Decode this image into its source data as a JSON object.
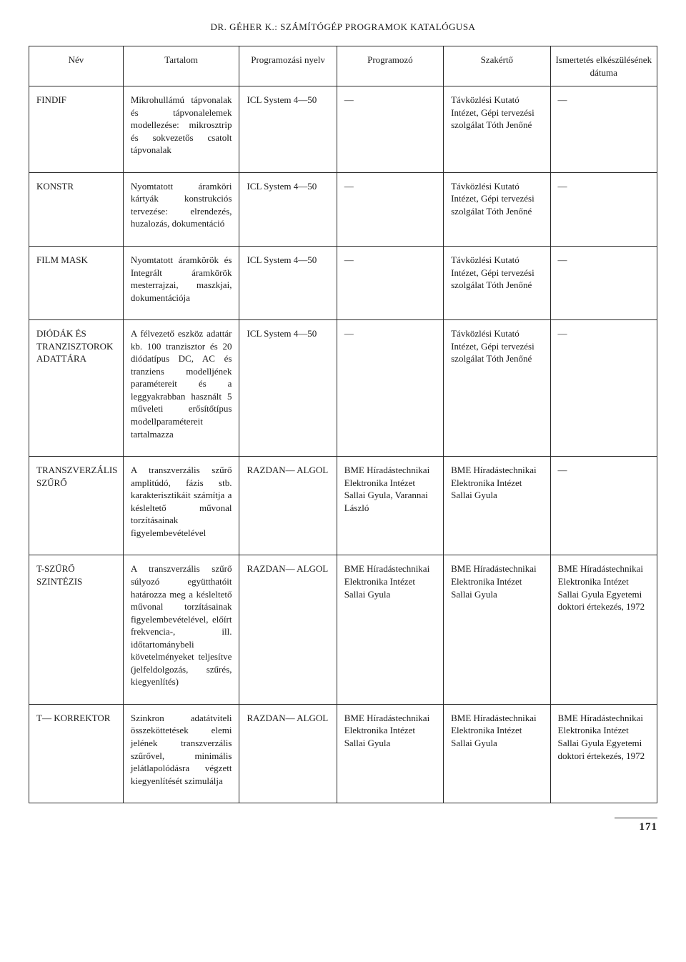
{
  "header": "DR. GÉHER K.: SZÁMÍTÓGÉP PROGRAMOK KATALÓGUSA",
  "columns": [
    "Név",
    "Tartalom",
    "Programozási nyelv",
    "Programozó",
    "Szakértő",
    "Ismertetés elkészülésének dátuma"
  ],
  "rows": [
    {
      "name": "FINDIF",
      "content": "Mikrohullámú tápvonalak és tápvonalelemek modellezése: mikrosztrip és sokvezetős csatolt tápvonalak",
      "language": "ICL System 4—50",
      "programmer": "—",
      "expert": "Távközlési Kutató Intézet, Gépi tervezési szolgálat Tóth Jenőné",
      "date": "—"
    },
    {
      "name": "KONSTR",
      "content": "Nyomtatott áramköri kártyák konstrukciós tervezése: elrendezés, huzalozás, dokumentáció",
      "language": "ICL System 4—50",
      "programmer": "—",
      "expert": "Távközlési Kutató Intézet, Gépi tervezési szolgálat Tóth Jenőné",
      "date": "—"
    },
    {
      "name": "FILM MASK",
      "content": "Nyomtatott áramkörök és Integrált áramkörök mesterrajzai, maszkjai, dokumentációja",
      "language": "ICL System 4—50",
      "programmer": "—",
      "expert": "Távközlési Kutató Intézet, Gépi tervezési szolgálat Tóth Jenőné",
      "date": "—"
    },
    {
      "name": "DIÓDÁK ÉS TRANZISZTOROK ADATTÁRA",
      "content": "A félvezető eszköz adattár kb. 100 tranzisztor és 20 diódatípus DC, AC és tranziens modelljének paramétereit és a leggyakrabban használt 5 műveleti erősítőtípus modellparamétereit tartalmazza",
      "language": "ICL System 4—50",
      "programmer": "—",
      "expert": "Távközlési Kutató Intézet, Gépi tervezési szolgálat Tóth Jenőné",
      "date": "—"
    },
    {
      "name": "TRANSZVERZÁLIS SZŰRŐ",
      "content": "A transzverzális szűrő amplitúdó, fázis stb. karakterisztikáit számítja a késleltető művonal torzításainak figyelembevételével",
      "language": "RAZDAN— ALGOL",
      "programmer": "BME Híradástechnikai Elektronika Intézet Sallai Gyula, Varannai László",
      "expert": "BME Híradástechnikai Elektronika Intézet Sallai Gyula",
      "date": "—"
    },
    {
      "name": "T-SZŰRŐ SZINTÉZIS",
      "content": "A transzverzális szűrő súlyozó együtthatóit határozza meg a késleltető művonal torzításainak figyelembevételével, előírt frekvencia-, ill. időtartománybeli követelményeket teljesítve (jelfeldolgozás, szűrés, kiegyenlítés)",
      "language": "RAZDAN— ALGOL",
      "programmer": "BME Híradástechnikai Elektronika Intézet Sallai Gyula",
      "expert": "BME Híradástechnikai Elektronika Intézet Sallai Gyula",
      "date": "BME Híradástechnikai Elektronika Intézet Sallai Gyula Egyetemi doktori értekezés, 1972"
    },
    {
      "name": "T— KORREKTOR",
      "content": "Szinkron adatátviteli összeköttetések elemi jelének transzverzális szűrővel, minimális jelátlapolódásra végzett kiegyenlítését szimulálja",
      "language": "RAZDAN— ALGOL",
      "programmer": "BME Híradástechnikai Elektronika Intézet Sallai Gyula",
      "expert": "BME Híradástechnikai Elektronika Intézet Sallai Gyula",
      "date": "BME Híradástechnikai Elektronika Intézet Sallai Gyula Egyetemi doktori értekezés, 1972"
    }
  ],
  "page_number": "171"
}
